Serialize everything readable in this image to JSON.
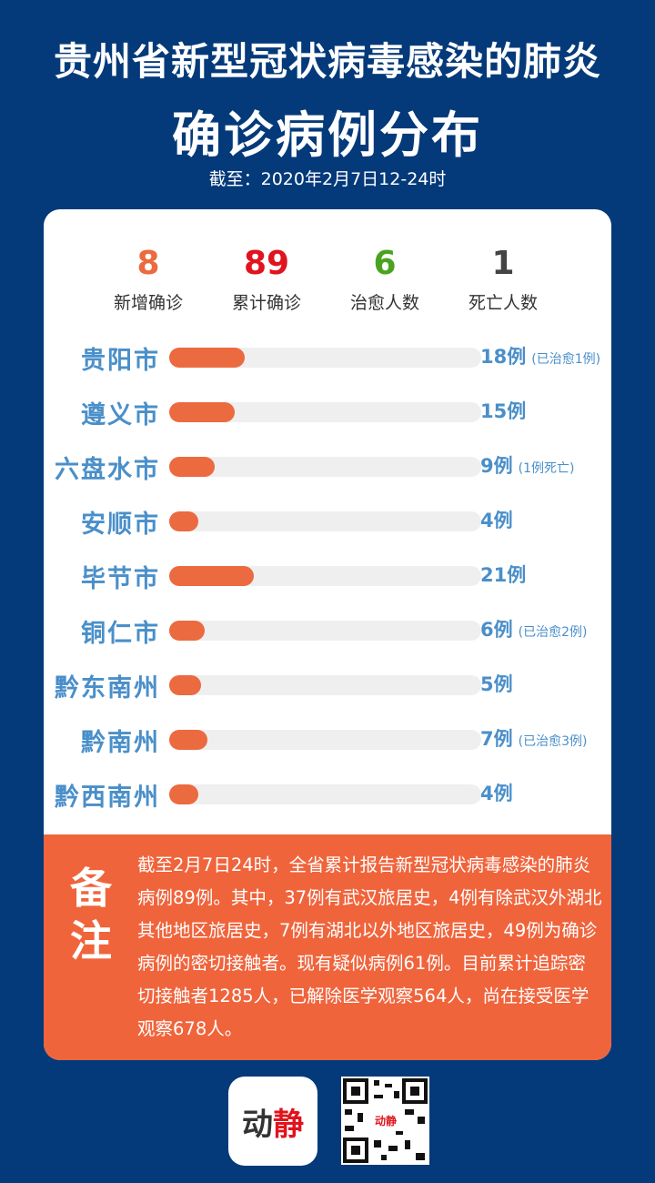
{
  "header": {
    "title_line1": "贵州省新型冠状病毒感染的肺炎",
    "title_line2": "确诊病例分布",
    "date": "截至：2020年2月7日12-24时"
  },
  "stats": [
    {
      "value": "8",
      "label": "新增确诊",
      "color": "#ec6a3f"
    },
    {
      "value": "89",
      "label": "累计确诊",
      "color": "#e0141e"
    },
    {
      "value": "6",
      "label": "治愈人数",
      "color": "#4aa31f"
    },
    {
      "value": "1",
      "label": "死亡人数",
      "color": "#444444"
    }
  ],
  "chart_data": {
    "type": "bar",
    "orientation": "horizontal",
    "categories": [
      "贵阳市",
      "遵义市",
      "六盘水市",
      "安顺市",
      "毕节市",
      "铜仁市",
      "黔东南州",
      "黔南州",
      "黔西南州"
    ],
    "values": [
      18,
      15,
      9,
      4,
      21,
      6,
      5,
      7,
      4
    ],
    "value_labels": [
      "18例",
      "15例",
      "9例",
      "4例",
      "21例",
      "6例",
      "5例",
      "7例",
      "4例"
    ],
    "notes": [
      "(已治愈1例)",
      "",
      "(1例死亡)",
      "",
      "",
      "(已治愈2例)",
      "",
      "(已治愈3例)",
      ""
    ],
    "bar_color": "#ec6a3f",
    "track_color": "#efefef",
    "label_color": "#4a8fc9"
  },
  "remark": {
    "label": "备注",
    "text": "截至2月7日24时，全省累计报告新型冠状病毒感染的肺炎病例89例。其中，37例有武汉旅居史，4例有除武汉外湖北其他地区旅居史，7例有湖北以外地区旅居史，49例为确诊病例的密切接触者。现有疑似病例61例。目前累计追踪密切接触者1285人，已解除医学观察564人，尚在接受医学观察678人。"
  },
  "footer": {
    "logo_text": "动静"
  }
}
